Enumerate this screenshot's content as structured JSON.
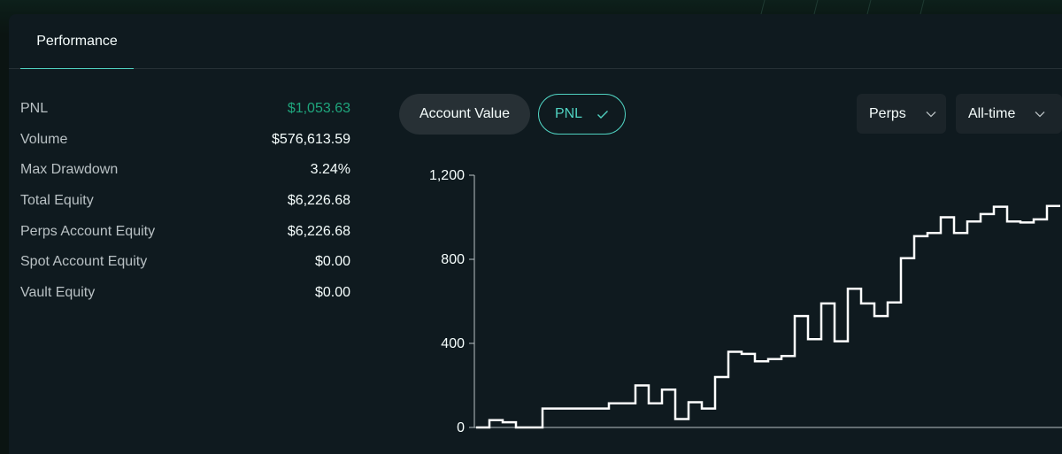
{
  "tabs": [
    {
      "label": "Performance",
      "active": true
    }
  ],
  "stats": [
    {
      "label": "PNL",
      "value": "$1,053.63",
      "tone": "positive"
    },
    {
      "label": "Volume",
      "value": "$576,613.59",
      "tone": "neutral"
    },
    {
      "label": "Max Drawdown",
      "value": "3.24%",
      "tone": "neutral"
    },
    {
      "label": "Total Equity",
      "value": "$6,226.68",
      "tone": "neutral"
    },
    {
      "label": "Perps Account Equity",
      "value": "$6,226.68",
      "tone": "neutral"
    },
    {
      "label": "Spot Account Equity",
      "value": "$0.00",
      "tone": "neutral"
    },
    {
      "label": "Vault Equity",
      "value": "$0.00",
      "tone": "neutral"
    }
  ],
  "toggles": {
    "account_value": "Account Value",
    "pnl": "PNL",
    "selected": "pnl"
  },
  "filters": {
    "market": "Perps",
    "range": "All-time"
  },
  "colors": {
    "accent": "#50d2c1",
    "positive": "#1fa67d",
    "line": "#ffffff"
  },
  "icons": {
    "pnl_selected": "check-icon",
    "dropdown": "chevron-down-icon"
  },
  "chart_data": {
    "type": "line",
    "step": true,
    "ylim": [
      0,
      1200
    ],
    "yticks": [
      0,
      400,
      800,
      1200
    ],
    "ytick_labels": [
      "0",
      "400",
      "800",
      "1,200"
    ],
    "values": [
      0,
      35,
      25,
      0,
      0,
      90,
      90,
      90,
      90,
      90,
      115,
      115,
      200,
      115,
      180,
      40,
      120,
      90,
      240,
      360,
      350,
      315,
      325,
      340,
      530,
      420,
      590,
      410,
      660,
      590,
      530,
      595,
      805,
      910,
      925,
      1000,
      925,
      980,
      1015,
      1050,
      980,
      975,
      990,
      1053.63
    ]
  }
}
